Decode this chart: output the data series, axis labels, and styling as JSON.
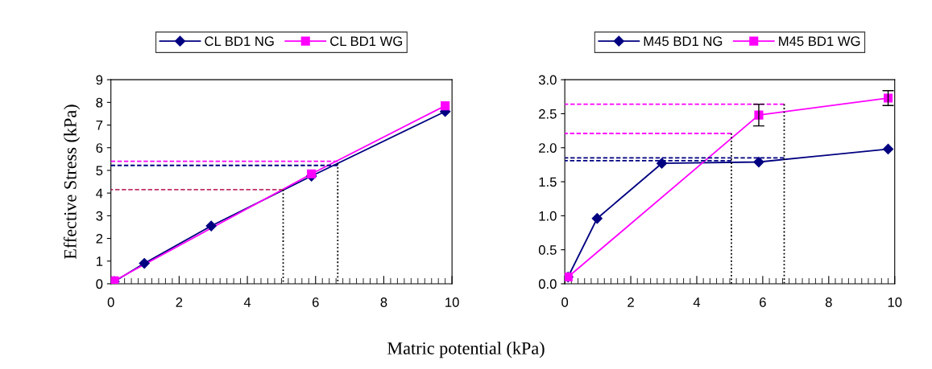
{
  "chart_data": [
    {
      "type": "line",
      "xlabel": "Matric potential (kPa)",
      "ylabel": "Effective Stress (kPa)",
      "xlim": [
        0,
        10
      ],
      "xticks": [
        0,
        2,
        4,
        6,
        8,
        10
      ],
      "ylim": [
        0,
        9
      ],
      "yticks": [
        0,
        1,
        2,
        3,
        4,
        5,
        6,
        7,
        8,
        9
      ],
      "legend": "top",
      "grid": false,
      "series": [
        {
          "name": "CL BD1 NG",
          "color": "#000080",
          "marker": "diamond",
          "x": [
            0.1,
            0.98,
            2.94,
            5.88,
            9.8
          ],
          "values": [
            0.1,
            0.9,
            2.55,
            4.75,
            7.6
          ]
        },
        {
          "name": "CL BD1 WG",
          "color": "#ff00ff",
          "marker": "square",
          "x": [
            0.1,
            5.88,
            9.8
          ],
          "values": [
            0.13,
            4.85,
            7.85
          ]
        },
        {
          "color": "#ff00ff",
          "marker": "none",
          "line_style": "dashed",
          "x": [
            6.65,
            0
          ],
          "values": [
            5.4,
            5.4
          ]
        },
        {
          "color": "#000080",
          "marker": "none",
          "line_style": "dashed",
          "x": [
            6.65,
            0
          ],
          "values": [
            5.22,
            5.22
          ]
        },
        {
          "color": "#c0306a",
          "marker": "none",
          "line_style": "dashed",
          "x": [
            5.05,
            0
          ],
          "values": [
            4.15,
            4.15
          ]
        },
        {
          "color": "#000000",
          "marker": "none",
          "line_style": "dotted",
          "x": [
            5.05,
            5.05
          ],
          "values": [
            4.15,
            0
          ]
        },
        {
          "color": "#000000",
          "marker": "none",
          "line_style": "dotted",
          "x": [
            6.65,
            6.65
          ],
          "values": [
            5.3,
            0
          ]
        }
      ]
    },
    {
      "type": "line",
      "xlim": [
        0,
        10
      ],
      "xticks": [
        0,
        2,
        4,
        6,
        8,
        10
      ],
      "ylim": [
        0,
        3
      ],
      "yticks": [
        {
          "value": 0,
          "label": "0.0"
        },
        {
          "value": 0.5,
          "label": "0.5"
        },
        {
          "value": 1,
          "label": "1.0"
        },
        {
          "value": 1.5,
          "label": "1.5"
        },
        {
          "value": 2,
          "label": "2.0"
        },
        {
          "value": 2.5,
          "label": "2.5"
        },
        {
          "value": 3,
          "label": "3.0"
        }
      ],
      "legend": "top",
      "grid": false,
      "series": [
        {
          "name": "M45 BD1 NG",
          "color": "#000080",
          "marker": "diamond",
          "x": [
            0.1,
            0.98,
            2.94,
            5.88,
            9.8
          ],
          "values": [
            0.1,
            0.96,
            1.77,
            1.79,
            1.98
          ]
        },
        {
          "name": "M45 BD1 WG",
          "color": "#ff00ff",
          "marker": "square",
          "x": [
            0.1,
            5.88,
            9.8
          ],
          "values": [
            0.1,
            2.48,
            2.73
          ],
          "errors": [
            null,
            0.16,
            0.11
          ]
        },
        {
          "color": "#ff00ff",
          "marker": "none",
          "line_style": "dashed",
          "x": [
            6.65,
            0
          ],
          "values": [
            2.64,
            2.64
          ]
        },
        {
          "color": "#ff00ff",
          "marker": "none",
          "line_style": "dashed",
          "x": [
            5.05,
            0
          ],
          "values": [
            2.21,
            2.21
          ]
        },
        {
          "color": "#000080",
          "marker": "none",
          "line_style": "dashed",
          "x": [
            6.65,
            0
          ],
          "values": [
            1.85,
            1.85
          ]
        },
        {
          "color": "#000080",
          "marker": "none",
          "line_style": "dashed",
          "x": [
            5.05,
            0
          ],
          "values": [
            1.81,
            1.81
          ]
        },
        {
          "color": "#000000",
          "marker": "none",
          "line_style": "dotted",
          "x": [
            5.05,
            5.05
          ],
          "values": [
            2.21,
            0
          ]
        },
        {
          "color": "#000000",
          "marker": "none",
          "line_style": "dotted",
          "x": [
            6.65,
            6.65
          ],
          "values": [
            2.64,
            0
          ]
        }
      ]
    }
  ]
}
